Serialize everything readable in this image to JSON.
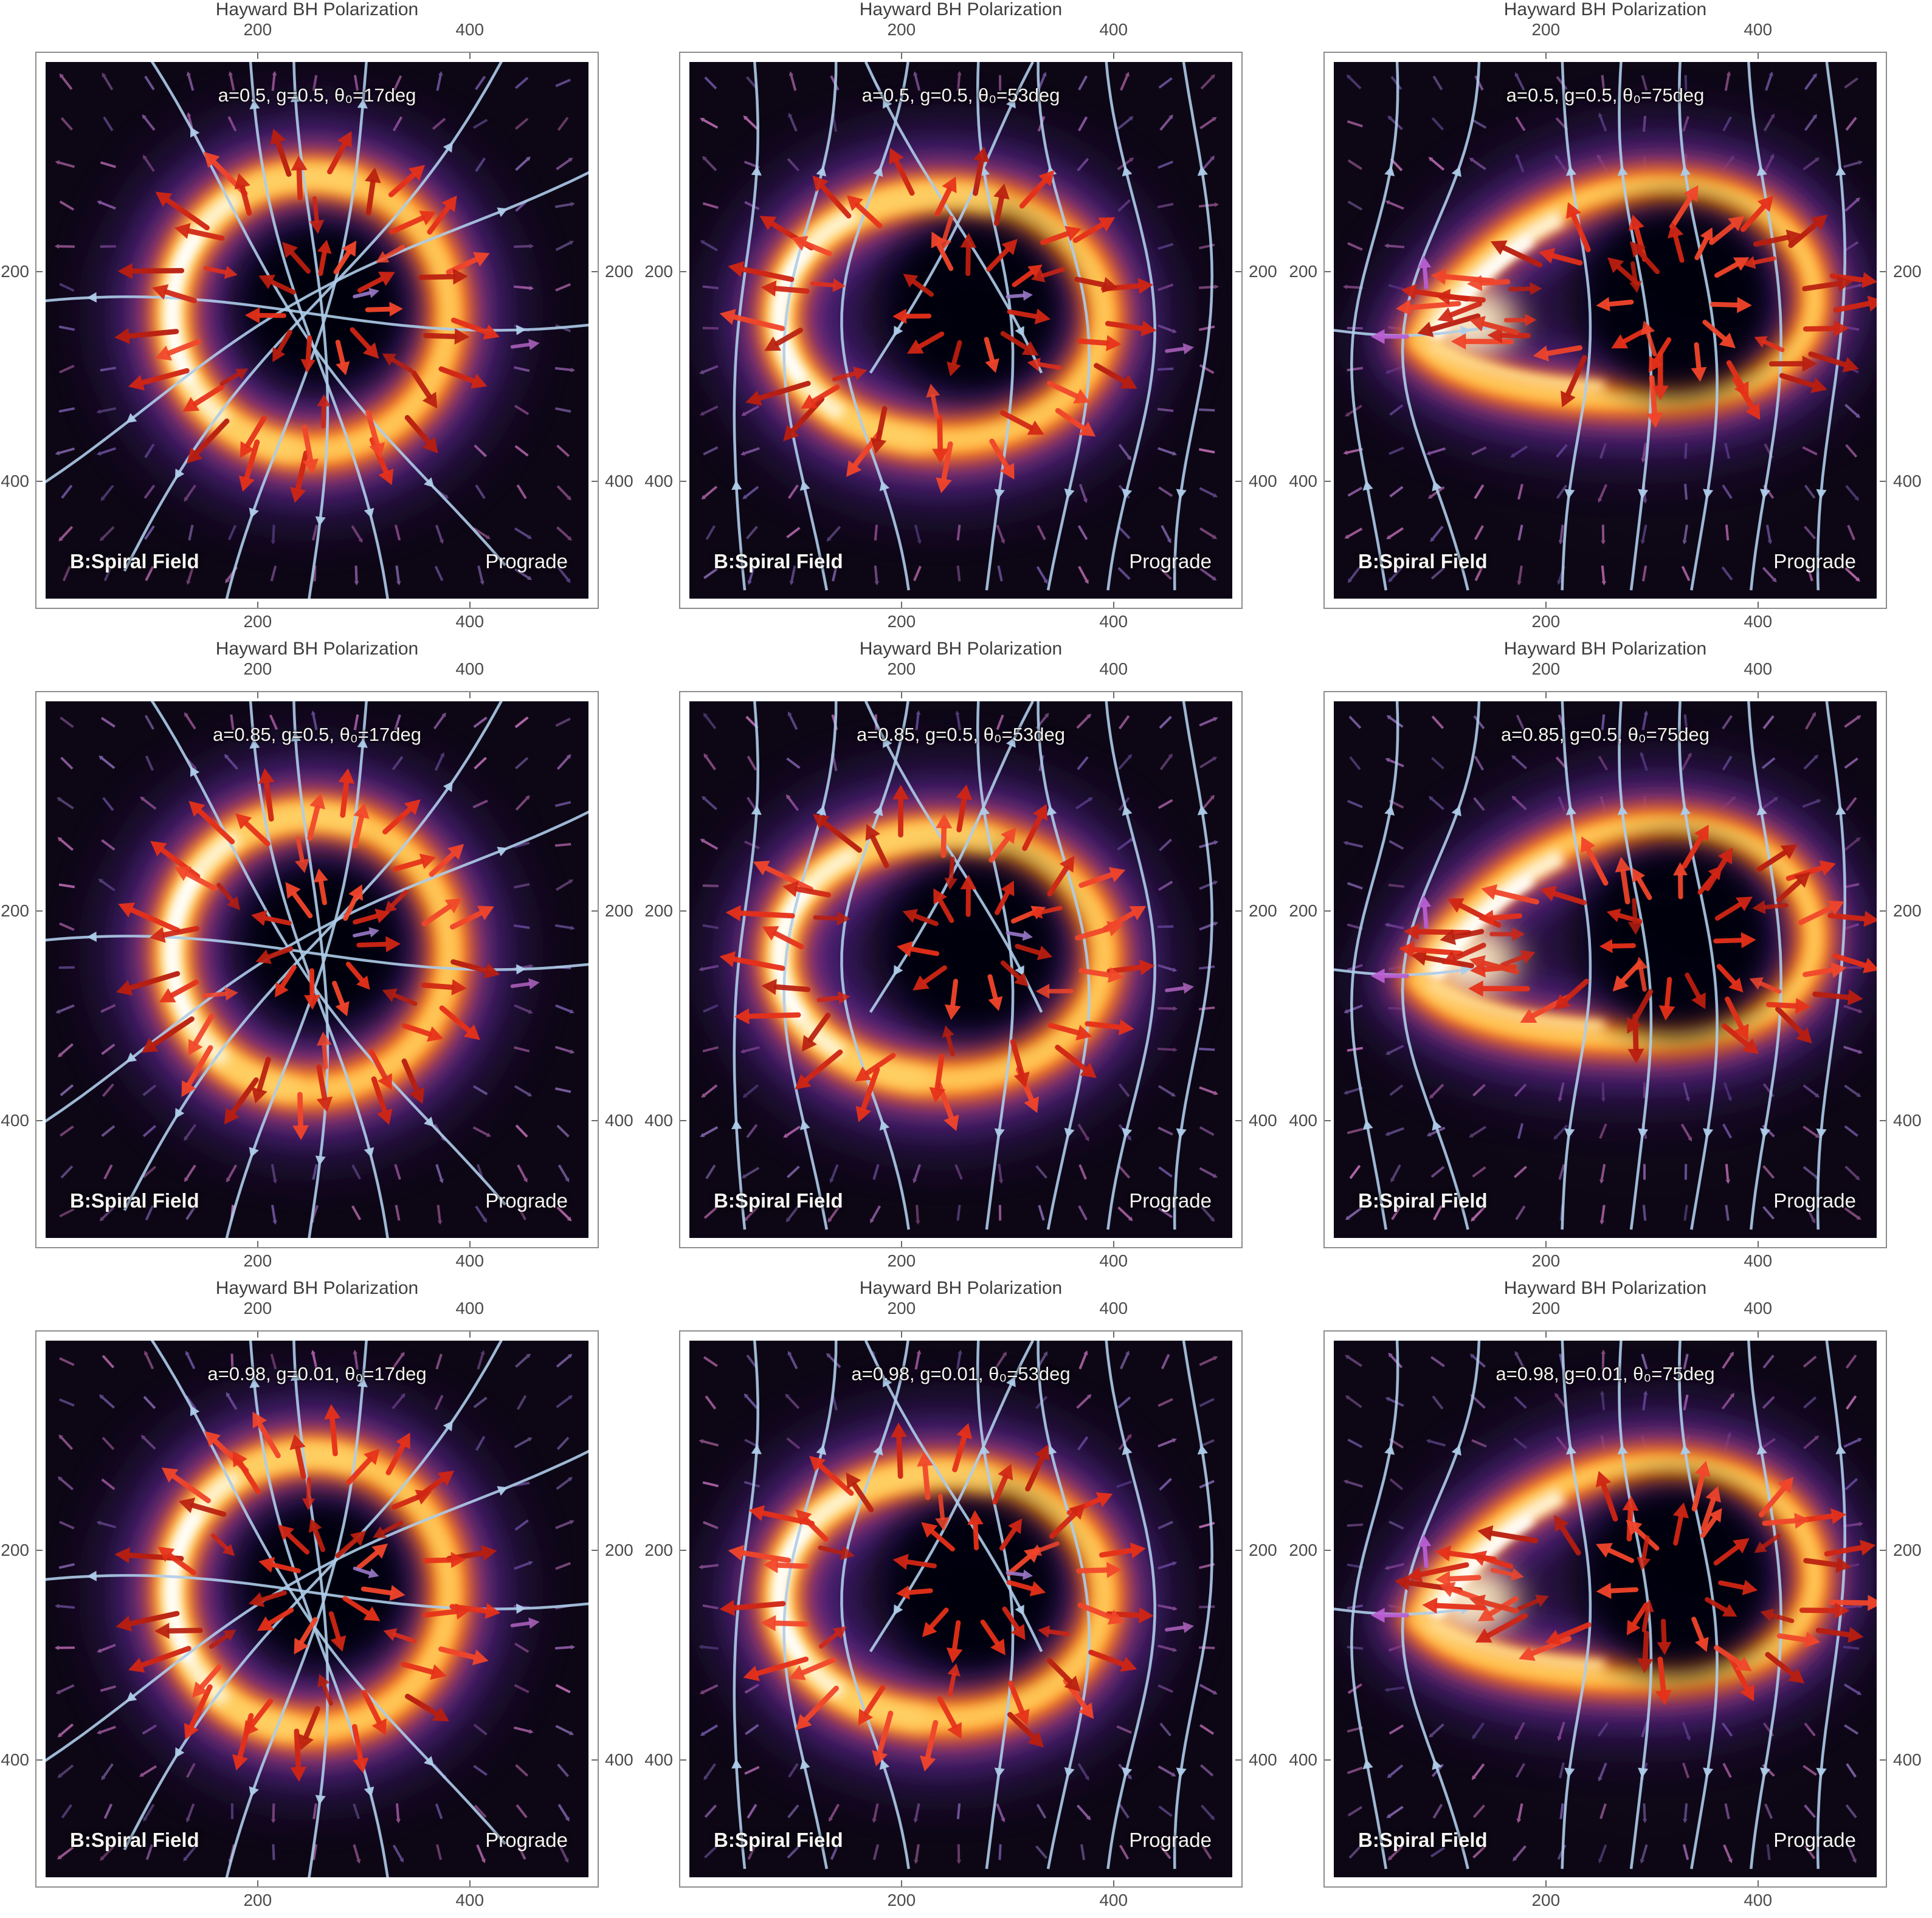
{
  "page": {
    "background": "#ffffff",
    "grid_layout": "3 columns x 3 rows"
  },
  "common": {
    "panel_title": "Hayward BH Polarization",
    "field_label": "B:Spiral Field",
    "orientation_label": "Prograde",
    "x_tick_labels": [
      "200",
      "400"
    ],
    "y_tick_labels": [
      "200",
      "400"
    ]
  },
  "colors": {
    "title_text": "#3e3e3e",
    "tick_text": "#4b4b4b",
    "annotation_text": "#f4f2ef",
    "frame_border": "#8d8d8d",
    "image_background": "#0d0715",
    "ring_purple_glow": "#45207c",
    "ring_magenta": "#8c33ac",
    "ring_deep_orange": "#d84f1e",
    "ring_orange": "#ff8f25",
    "ring_yellow": "#ffc554",
    "ring_white_hot": "#fff4d4",
    "polarization_arrow_red": "#e63019",
    "streamline_blue": "#aecce9",
    "background_tick_purple": "#7e62a6",
    "accent_magenta": "#b95fd2"
  },
  "chart_data": {
    "type": "heatmap",
    "title": "Hayward BH Polarization",
    "grid": "3x3",
    "x_ticks": [
      200,
      400
    ],
    "y_ticks": [
      200,
      400
    ],
    "axis_range": [
      0,
      512
    ],
    "grid_lines": "off",
    "overlays": [
      "red polarization vector arrows around photon ring",
      "light-blue magnetic field streamlines (spiral field)",
      "faint purple polarization ticks in background"
    ],
    "panels": [
      {
        "row": 1,
        "col": 1,
        "a": 0.5,
        "g": 0.5,
        "theta0_deg": 17,
        "annotation": "a=0.5, g=0.5, θ₀=17deg",
        "field": "B:Spiral Field",
        "orientation": "Prograde",
        "ring_shape": "circular ring, bright left limb"
      },
      {
        "row": 1,
        "col": 2,
        "a": 0.5,
        "g": 0.5,
        "theta0_deg": 53,
        "annotation": "a=0.5, g=0.5, θ₀=53deg",
        "field": "B:Spiral Field",
        "orientation": "Prograde",
        "ring_shape": "oval ring, bright left limb"
      },
      {
        "row": 1,
        "col": 3,
        "a": 0.5,
        "g": 0.5,
        "theta0_deg": 75,
        "annotation": "a=0.5, g=0.5, θ₀=75deg",
        "field": "B:Spiral Field",
        "orientation": "Prograde",
        "ring_shape": "flattened teardrop ring, bright left cusp"
      },
      {
        "row": 2,
        "col": 1,
        "a": 0.85,
        "g": 0.5,
        "theta0_deg": 17,
        "annotation": "a=0.85, g=0.5, θ₀=17deg",
        "field": "B:Spiral Field",
        "orientation": "Prograde",
        "ring_shape": "circular ring, bright left limb"
      },
      {
        "row": 2,
        "col": 2,
        "a": 0.85,
        "g": 0.5,
        "theta0_deg": 53,
        "annotation": "a=0.85, g=0.5, θ₀=53deg",
        "field": "B:Spiral Field",
        "orientation": "Prograde",
        "ring_shape": "oval ring, bright left limb"
      },
      {
        "row": 2,
        "col": 3,
        "a": 0.85,
        "g": 0.5,
        "theta0_deg": 75,
        "annotation": "a=0.85, g=0.5, θ₀=75deg",
        "field": "B:Spiral Field",
        "orientation": "Prograde",
        "ring_shape": "flattened teardrop ring, bright left cusp"
      },
      {
        "row": 3,
        "col": 1,
        "a": 0.98,
        "g": 0.01,
        "theta0_deg": 17,
        "annotation": "a=0.98, g=0.01, θ₀=17deg",
        "field": "B:Spiral Field",
        "orientation": "Prograde",
        "ring_shape": "circular ring, bright left limb"
      },
      {
        "row": 3,
        "col": 2,
        "a": 0.98,
        "g": 0.01,
        "theta0_deg": 53,
        "annotation": "a=0.98, g=0.01, θ₀=53deg",
        "field": "B:Spiral Field",
        "orientation": "Prograde",
        "ring_shape": "oval ring, bright left limb"
      },
      {
        "row": 3,
        "col": 3,
        "a": 0.98,
        "g": 0.01,
        "theta0_deg": 75,
        "annotation": "a=0.98, g=0.01, θ₀=75deg",
        "field": "B:Spiral Field",
        "orientation": "Prograde",
        "ring_shape": "flattened teardrop ring, bright left cusp"
      }
    ]
  }
}
